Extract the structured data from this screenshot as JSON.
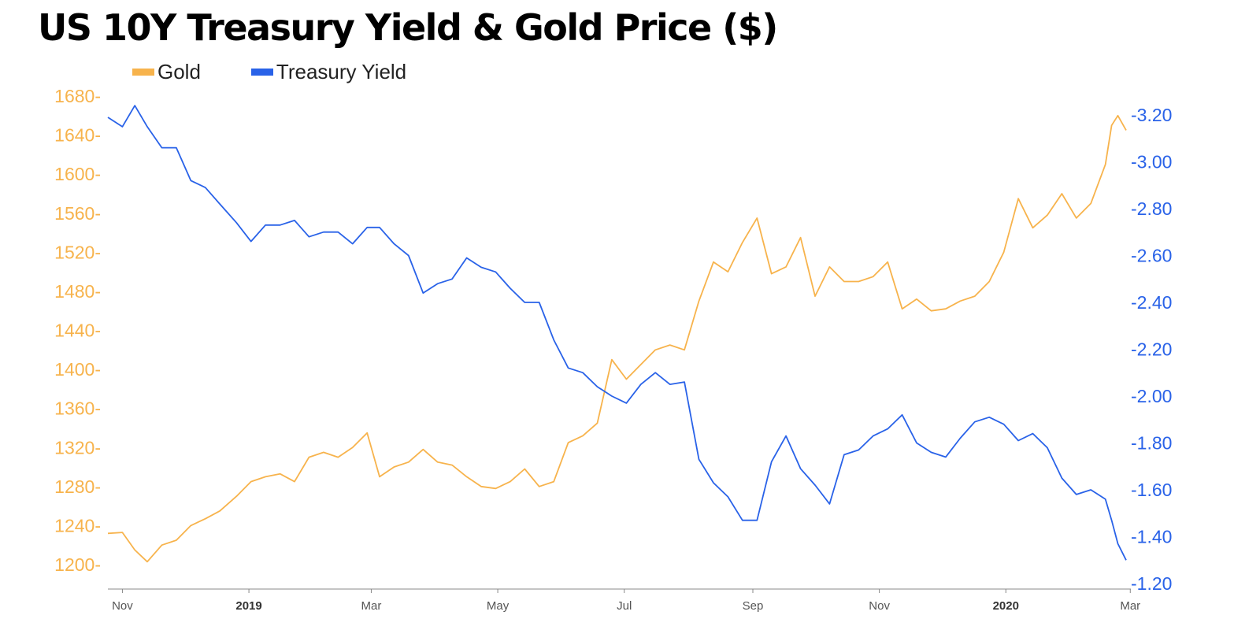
{
  "title": "US 10Y Treasury Yield & Gold Price ($)",
  "legend": [
    {
      "label": "Gold",
      "color": "#F7B34C"
    },
    {
      "label": "Treasury Yield",
      "color": "#2962E8"
    }
  ],
  "chart_data": {
    "type": "line",
    "title": "US 10Y Treasury Yield & Gold Price ($)",
    "x_axis": {
      "range": [
        "2018-10-25",
        "2020-02-28"
      ],
      "ticks": [
        {
          "date": "2018-11-01",
          "label": "Nov",
          "bold": false
        },
        {
          "date": "2019-01-01",
          "label": "2019",
          "bold": true
        },
        {
          "date": "2019-03-01",
          "label": "Mar",
          "bold": false
        },
        {
          "date": "2019-05-01",
          "label": "May",
          "bold": false
        },
        {
          "date": "2019-07-01",
          "label": "Jul",
          "bold": false
        },
        {
          "date": "2019-09-01",
          "label": "Sep",
          "bold": false
        },
        {
          "date": "2019-11-01",
          "label": "Nov",
          "bold": false
        },
        {
          "date": "2020-01-01",
          "label": "2020",
          "bold": true
        },
        {
          "date": "2020-03-01",
          "label": "Mar",
          "bold": false
        }
      ]
    },
    "y_left": {
      "range": [
        1190,
        1690
      ],
      "ticks": [
        1200,
        1240,
        1280,
        1320,
        1360,
        1400,
        1440,
        1480,
        1520,
        1560,
        1600,
        1640,
        1680
      ],
      "color": "#F7B34C"
    },
    "y_right": {
      "inverted": true,
      "range": [
        1.2,
        3.3
      ],
      "ticks": [
        "-1.20",
        "-1.40",
        "-1.60",
        "-1.80",
        "-2.00",
        "-2.20",
        "-2.40",
        "-2.60",
        "-2.80",
        "-3.00",
        "-3.20"
      ],
      "color": "#2962E8"
    },
    "series": [
      {
        "name": "Gold",
        "axis": "left",
        "color": "#F7B34C",
        "points": [
          [
            "2018-10-25",
            1232
          ],
          [
            "2018-11-01",
            1233
          ],
          [
            "2018-11-07",
            1215
          ],
          [
            "2018-11-13",
            1203
          ],
          [
            "2018-11-20",
            1220
          ],
          [
            "2018-11-27",
            1225
          ],
          [
            "2018-12-04",
            1240
          ],
          [
            "2018-12-11",
            1247
          ],
          [
            "2018-12-18",
            1255
          ],
          [
            "2018-12-26",
            1270
          ],
          [
            "2019-01-02",
            1285
          ],
          [
            "2019-01-09",
            1290
          ],
          [
            "2019-01-16",
            1293
          ],
          [
            "2019-01-23",
            1285
          ],
          [
            "2019-01-30",
            1310
          ],
          [
            "2019-02-06",
            1315
          ],
          [
            "2019-02-13",
            1310
          ],
          [
            "2019-02-20",
            1320
          ],
          [
            "2019-02-27",
            1335
          ],
          [
            "2019-03-05",
            1290
          ],
          [
            "2019-03-12",
            1300
          ],
          [
            "2019-03-19",
            1305
          ],
          [
            "2019-03-26",
            1318
          ],
          [
            "2019-04-02",
            1305
          ],
          [
            "2019-04-09",
            1302
          ],
          [
            "2019-04-16",
            1290
          ],
          [
            "2019-04-23",
            1280
          ],
          [
            "2019-04-30",
            1278
          ],
          [
            "2019-05-07",
            1285
          ],
          [
            "2019-05-14",
            1298
          ],
          [
            "2019-05-21",
            1280
          ],
          [
            "2019-05-28",
            1285
          ],
          [
            "2019-06-04",
            1325
          ],
          [
            "2019-06-11",
            1332
          ],
          [
            "2019-06-18",
            1345
          ],
          [
            "2019-06-25",
            1410
          ],
          [
            "2019-07-02",
            1390
          ],
          [
            "2019-07-09",
            1405
          ],
          [
            "2019-07-16",
            1420
          ],
          [
            "2019-07-23",
            1425
          ],
          [
            "2019-07-30",
            1420
          ],
          [
            "2019-08-06",
            1470
          ],
          [
            "2019-08-13",
            1510
          ],
          [
            "2019-08-20",
            1500
          ],
          [
            "2019-08-27",
            1530
          ],
          [
            "2019-09-03",
            1555
          ],
          [
            "2019-09-10",
            1498
          ],
          [
            "2019-09-17",
            1505
          ],
          [
            "2019-09-24",
            1535
          ],
          [
            "2019-10-01",
            1475
          ],
          [
            "2019-10-08",
            1505
          ],
          [
            "2019-10-15",
            1490
          ],
          [
            "2019-10-22",
            1490
          ],
          [
            "2019-10-29",
            1495
          ],
          [
            "2019-11-05",
            1510
          ],
          [
            "2019-11-12",
            1462
          ],
          [
            "2019-11-19",
            1472
          ],
          [
            "2019-11-26",
            1460
          ],
          [
            "2019-12-03",
            1462
          ],
          [
            "2019-12-10",
            1470
          ],
          [
            "2019-12-17",
            1475
          ],
          [
            "2019-12-24",
            1490
          ],
          [
            "2019-12-31",
            1520
          ],
          [
            "2020-01-07",
            1575
          ],
          [
            "2020-01-14",
            1545
          ],
          [
            "2020-01-21",
            1558
          ],
          [
            "2020-01-28",
            1580
          ],
          [
            "2020-02-04",
            1555
          ],
          [
            "2020-02-11",
            1570
          ],
          [
            "2020-02-18",
            1610
          ],
          [
            "2020-02-21",
            1650
          ],
          [
            "2020-02-24",
            1660
          ],
          [
            "2020-02-28",
            1645
          ]
        ]
      },
      {
        "name": "Treasury Yield",
        "axis": "right",
        "color": "#2962E8",
        "points": [
          [
            "2018-10-25",
            3.19
          ],
          [
            "2018-11-01",
            3.15
          ],
          [
            "2018-11-07",
            3.24
          ],
          [
            "2018-11-13",
            3.15
          ],
          [
            "2018-11-20",
            3.06
          ],
          [
            "2018-11-27",
            3.06
          ],
          [
            "2018-12-04",
            2.92
          ],
          [
            "2018-12-11",
            2.89
          ],
          [
            "2018-12-18",
            2.82
          ],
          [
            "2018-12-26",
            2.74
          ],
          [
            "2019-01-02",
            2.66
          ],
          [
            "2019-01-09",
            2.73
          ],
          [
            "2019-01-16",
            2.73
          ],
          [
            "2019-01-23",
            2.75
          ],
          [
            "2019-01-30",
            2.68
          ],
          [
            "2019-02-06",
            2.7
          ],
          [
            "2019-02-13",
            2.7
          ],
          [
            "2019-02-20",
            2.65
          ],
          [
            "2019-02-27",
            2.72
          ],
          [
            "2019-03-05",
            2.72
          ],
          [
            "2019-03-12",
            2.65
          ],
          [
            "2019-03-19",
            2.6
          ],
          [
            "2019-03-26",
            2.44
          ],
          [
            "2019-04-02",
            2.48
          ],
          [
            "2019-04-09",
            2.5
          ],
          [
            "2019-04-16",
            2.59
          ],
          [
            "2019-04-23",
            2.55
          ],
          [
            "2019-04-30",
            2.53
          ],
          [
            "2019-05-07",
            2.46
          ],
          [
            "2019-05-14",
            2.4
          ],
          [
            "2019-05-21",
            2.4
          ],
          [
            "2019-05-28",
            2.24
          ],
          [
            "2019-06-04",
            2.12
          ],
          [
            "2019-06-11",
            2.1
          ],
          [
            "2019-06-18",
            2.04
          ],
          [
            "2019-06-25",
            2.0
          ],
          [
            "2019-07-02",
            1.97
          ],
          [
            "2019-07-09",
            2.05
          ],
          [
            "2019-07-16",
            2.1
          ],
          [
            "2019-07-23",
            2.05
          ],
          [
            "2019-07-30",
            2.06
          ],
          [
            "2019-08-06",
            1.73
          ],
          [
            "2019-08-13",
            1.63
          ],
          [
            "2019-08-20",
            1.57
          ],
          [
            "2019-08-27",
            1.47
          ],
          [
            "2019-09-03",
            1.47
          ],
          [
            "2019-09-10",
            1.72
          ],
          [
            "2019-09-17",
            1.83
          ],
          [
            "2019-09-24",
            1.69
          ],
          [
            "2019-10-01",
            1.62
          ],
          [
            "2019-10-08",
            1.54
          ],
          [
            "2019-10-15",
            1.75
          ],
          [
            "2019-10-22",
            1.77
          ],
          [
            "2019-10-29",
            1.83
          ],
          [
            "2019-11-05",
            1.86
          ],
          [
            "2019-11-12",
            1.92
          ],
          [
            "2019-11-19",
            1.8
          ],
          [
            "2019-11-26",
            1.76
          ],
          [
            "2019-12-03",
            1.74
          ],
          [
            "2019-12-10",
            1.82
          ],
          [
            "2019-12-17",
            1.89
          ],
          [
            "2019-12-24",
            1.91
          ],
          [
            "2019-12-31",
            1.88
          ],
          [
            "2020-01-07",
            1.81
          ],
          [
            "2020-01-14",
            1.84
          ],
          [
            "2020-01-21",
            1.78
          ],
          [
            "2020-01-28",
            1.65
          ],
          [
            "2020-02-04",
            1.58
          ],
          [
            "2020-02-11",
            1.6
          ],
          [
            "2020-02-18",
            1.56
          ],
          [
            "2020-02-21",
            1.47
          ],
          [
            "2020-02-24",
            1.37
          ],
          [
            "2020-02-28",
            1.3
          ]
        ]
      }
    ]
  }
}
